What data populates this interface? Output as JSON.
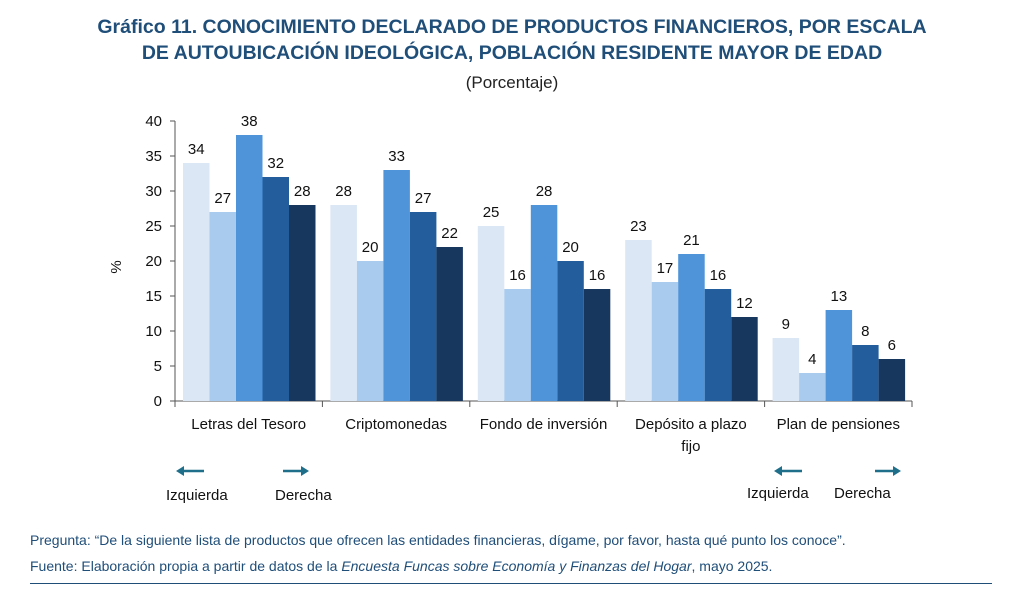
{
  "header": {
    "title_line1": "Gráfico 11. CONOCIMIENTO DECLARADO DE PRODUCTOS FINANCIEROS, POR ESCALA",
    "title_line2": "DE AUTOUBICACIÓN IDEOLÓGICA, POBLACIÓN RESIDENTE MAYOR DE EDAD",
    "subtitle": "(Porcentaje)"
  },
  "chart_data": {
    "type": "bar",
    "categories": [
      "Letras del Tesoro",
      "Criptomonedas",
      "Fondo de inversión",
      "Depósito a plazo fijo",
      "Plan de pensiones"
    ],
    "category_lines": [
      [
        "Letras del Tesoro"
      ],
      [
        "Criptomonedas"
      ],
      [
        "Fondo de inversión"
      ],
      [
        "Depósito a plazo",
        "fijo"
      ],
      [
        "Plan de pensiones"
      ]
    ],
    "series": [
      {
        "values": [
          34,
          28,
          25,
          23,
          9
        ],
        "color": "#dbe7f5"
      },
      {
        "values": [
          27,
          20,
          16,
          17,
          4
        ],
        "color": "#a9cbee"
      },
      {
        "values": [
          38,
          33,
          28,
          21,
          13
        ],
        "color": "#4f93d9"
      },
      {
        "values": [
          32,
          27,
          20,
          16,
          8
        ],
        "color": "#235d9c"
      },
      {
        "values": [
          28,
          22,
          16,
          12,
          6
        ],
        "color": "#17375e"
      }
    ],
    "ylabel": "%",
    "ylim": [
      0,
      40
    ],
    "yticks": [
      0,
      5,
      10,
      15,
      20,
      25,
      30,
      35,
      40
    ],
    "grid": false,
    "legend": "none"
  },
  "scale_legend": {
    "left_label": "Izquierda",
    "right_label": "Derecha",
    "arrow_color": "#1f6f8b"
  },
  "notes": {
    "question": "Pregunta: “De la siguiente lista de productos que ofrecen las entidades financieras, dígame, por favor, hasta qué punto los conoce”.",
    "source_prefix": "Fuente: Elaboración propia a partir de datos de la ",
    "source_italic": "Encuesta Funcas sobre Economía y Finanzas del Hogar",
    "source_suffix": ", mayo 2025."
  }
}
